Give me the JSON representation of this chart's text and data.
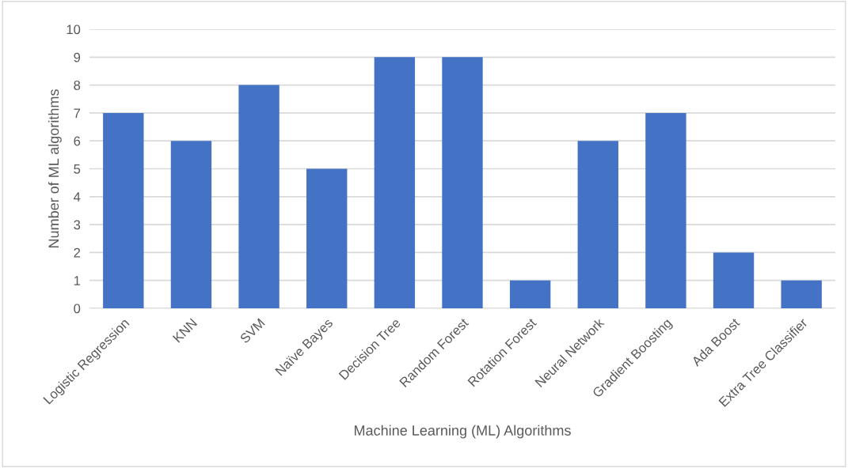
{
  "chart_data": {
    "type": "bar",
    "xlabel": "Machine Learning (ML) Algorithms",
    "ylabel": "Number of ML algorithms",
    "categories": [
      "Logistic Regression",
      "KNN",
      "SVM",
      "Naïve Bayes",
      "Decision Tree",
      "Random Forest",
      "Rotation Forest",
      "Neural Network",
      "Gradient Boosting",
      "Ada Boost",
      "Extra Tree Classifier"
    ],
    "values": [
      7,
      6,
      8,
      5,
      9,
      9,
      1,
      6,
      7,
      2,
      1
    ],
    "color": "#4472c4",
    "ylim": [
      0,
      10
    ],
    "yticks": [
      0,
      1,
      2,
      3,
      4,
      5,
      6,
      7,
      8,
      9,
      10
    ],
    "grid": "y"
  }
}
